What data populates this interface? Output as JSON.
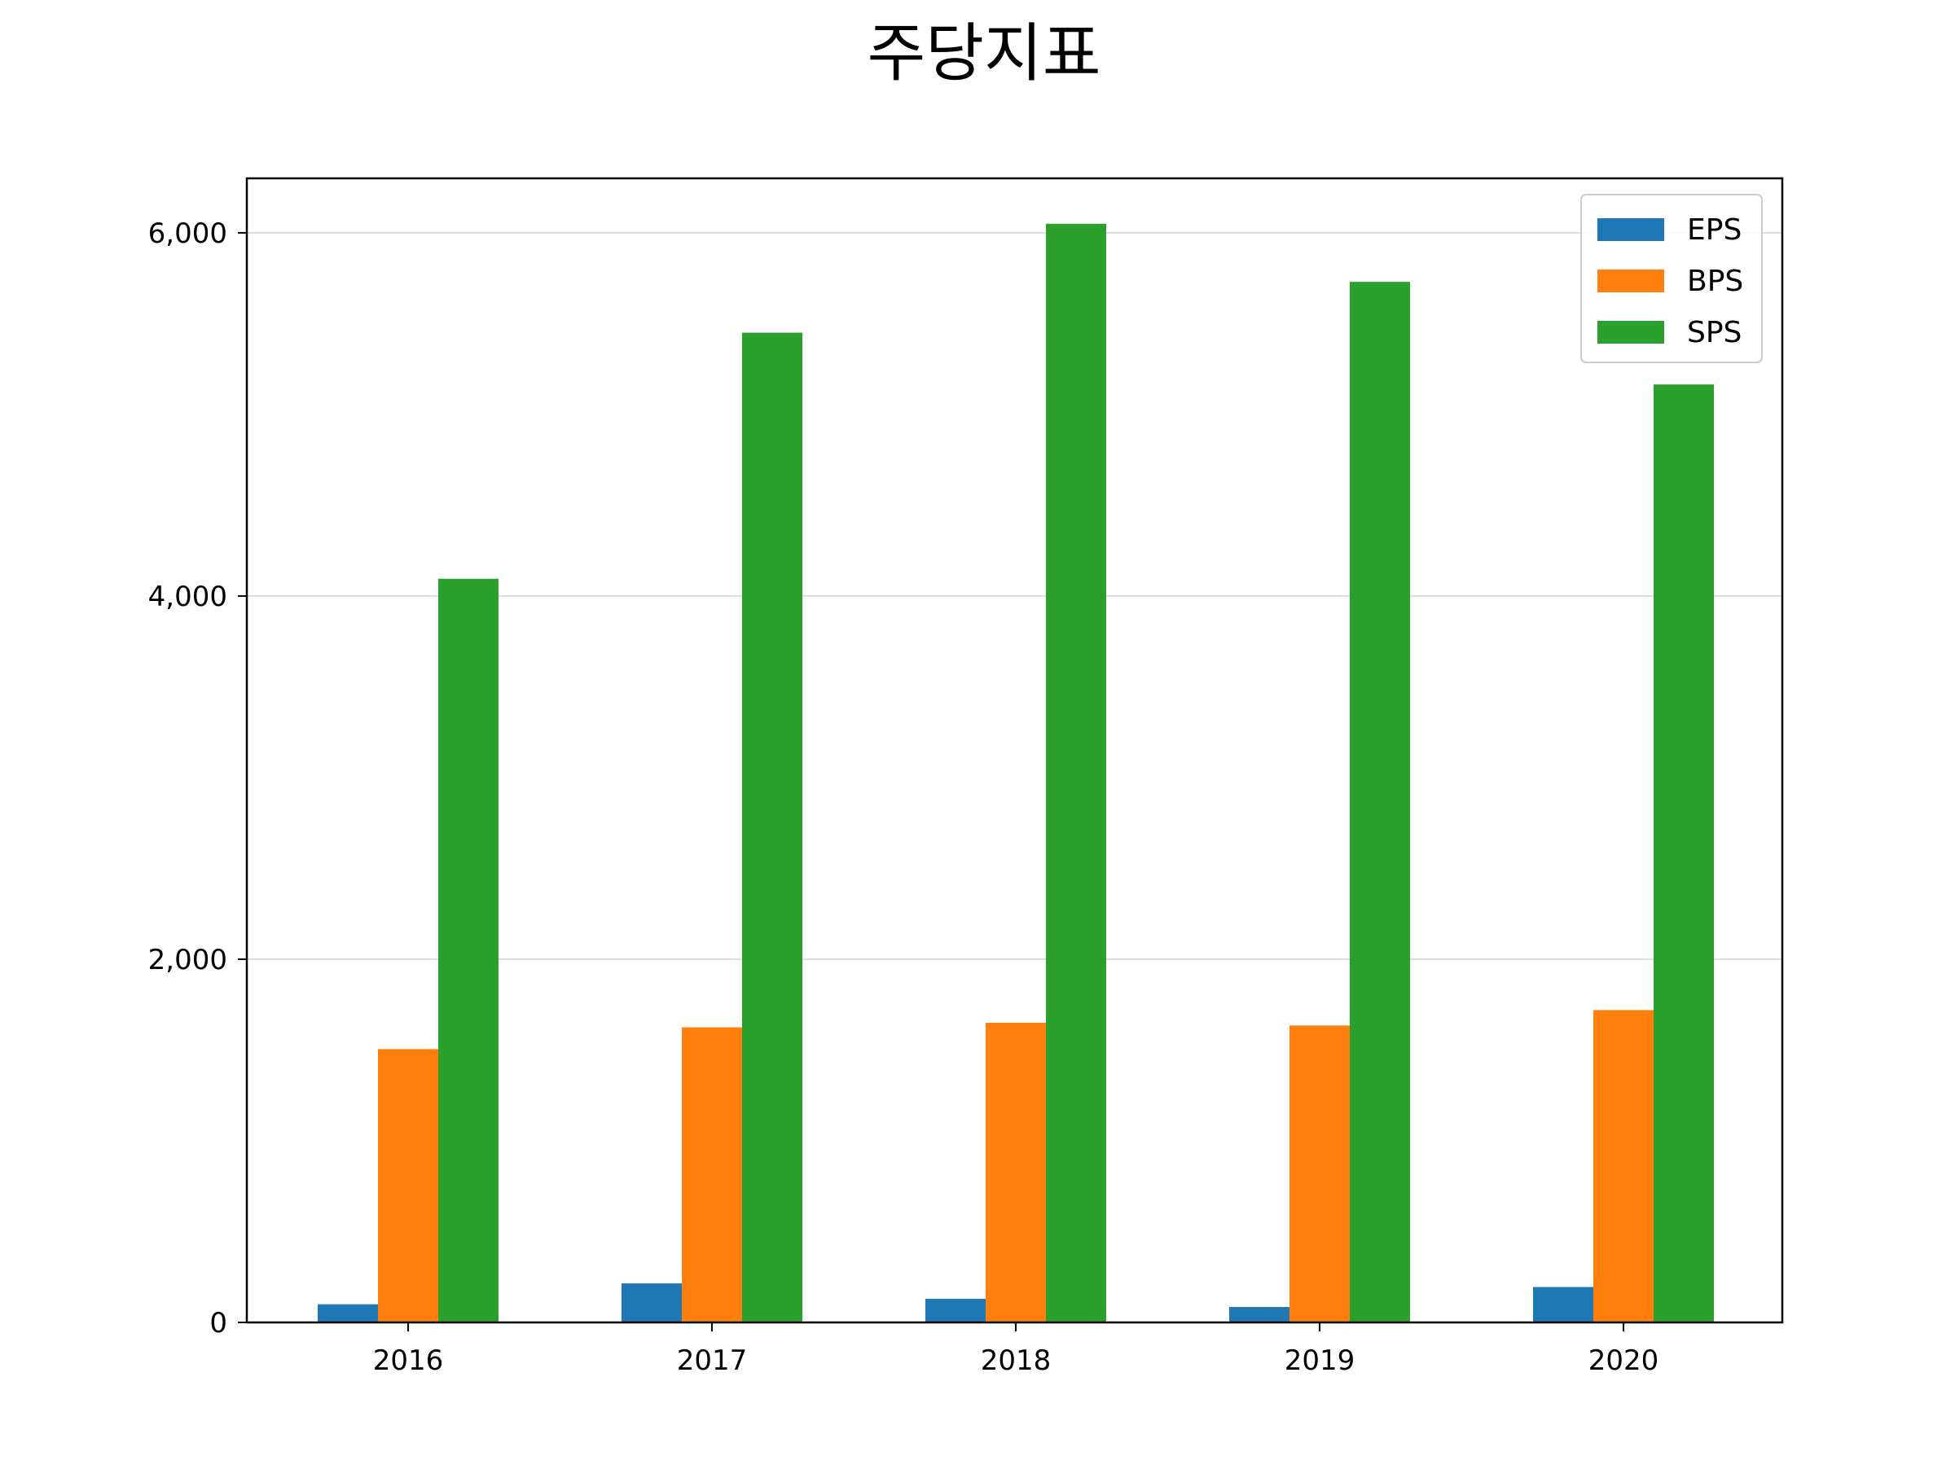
{
  "chart_data": {
    "type": "bar",
    "title": "주당지표",
    "xlabel": "",
    "ylabel": "",
    "categories": [
      "2016",
      "2017",
      "2018",
      "2019",
      "2020"
    ],
    "series": [
      {
        "name": "EPS",
        "values": [
          100,
          215,
          130,
          85,
          195
        ],
        "color": "#1f77b4"
      },
      {
        "name": "BPS",
        "values": [
          1505,
          1625,
          1650,
          1635,
          1720
        ],
        "color": "#ff7f0e"
      },
      {
        "name": "SPS",
        "values": [
          4095,
          5450,
          6050,
          5730,
          5165
        ],
        "color": "#2ca02c"
      }
    ],
    "ylim": [
      0,
      6300
    ],
    "yticks": [
      0,
      2000,
      4000,
      6000
    ],
    "ytick_labels": [
      "0",
      "2,000",
      "4,000",
      "6,000"
    ],
    "grid": {
      "y": true,
      "x": false,
      "color": "#d3d3d3"
    },
    "legend": {
      "position": "top-right"
    }
  }
}
